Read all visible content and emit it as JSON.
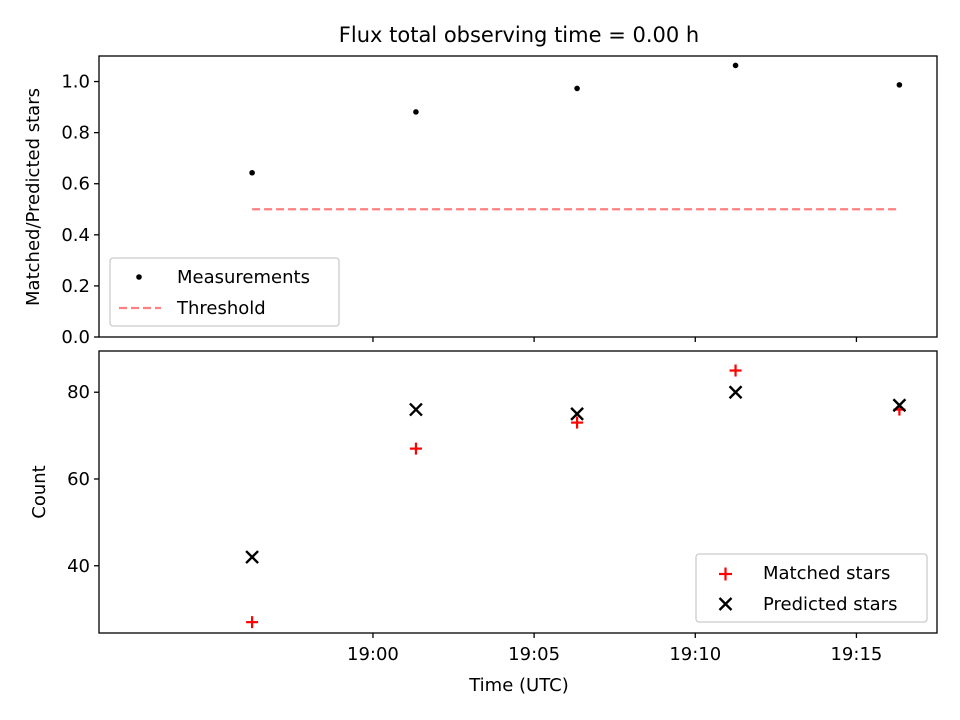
{
  "chart_data": [
    {
      "type": "scatter",
      "title": "Flux total observing time = 0.00 h",
      "ylabel": "Matched/Predicted stars",
      "ylim": [
        0.0,
        1.1
      ],
      "yticks": [
        "0.0",
        "0.2",
        "0.4",
        "0.6",
        "0.8",
        "1.0"
      ],
      "x_times": [
        "18:56:15",
        "19:01:20",
        "19:06:20",
        "19:11:15",
        "19:16:20"
      ],
      "series": [
        {
          "name": "Measurements",
          "marker": "dot",
          "color": "#000000",
          "values": [
            0.643,
            0.881,
            0.973,
            1.063,
            0.987
          ]
        },
        {
          "name": "Threshold",
          "marker": "dashed-line",
          "color": "#ff8080",
          "x_times": [
            "18:56:15",
            "19:16:20"
          ],
          "values": [
            0.5,
            0.5
          ]
        }
      ],
      "legend": "lower-left"
    },
    {
      "type": "scatter",
      "xlabel": "Time (UTC)",
      "ylabel": "Count",
      "ylim": [
        24.5,
        89.5
      ],
      "yticks": [
        "40",
        "60",
        "80"
      ],
      "xticks": [
        "19:00",
        "19:05",
        "19:10",
        "19:15"
      ],
      "x_times": [
        "18:56:15",
        "19:01:20",
        "19:06:20",
        "19:11:15",
        "19:16:20"
      ],
      "series": [
        {
          "name": "Matched stars",
          "marker": "plus",
          "color": "#ff0000",
          "values": [
            27,
            67,
            73,
            85,
            76
          ]
        },
        {
          "name": "Predicted stars",
          "marker": "x",
          "color": "#000000",
          "values": [
            42,
            76,
            75,
            80,
            77
          ]
        }
      ],
      "legend": "lower-right"
    }
  ]
}
